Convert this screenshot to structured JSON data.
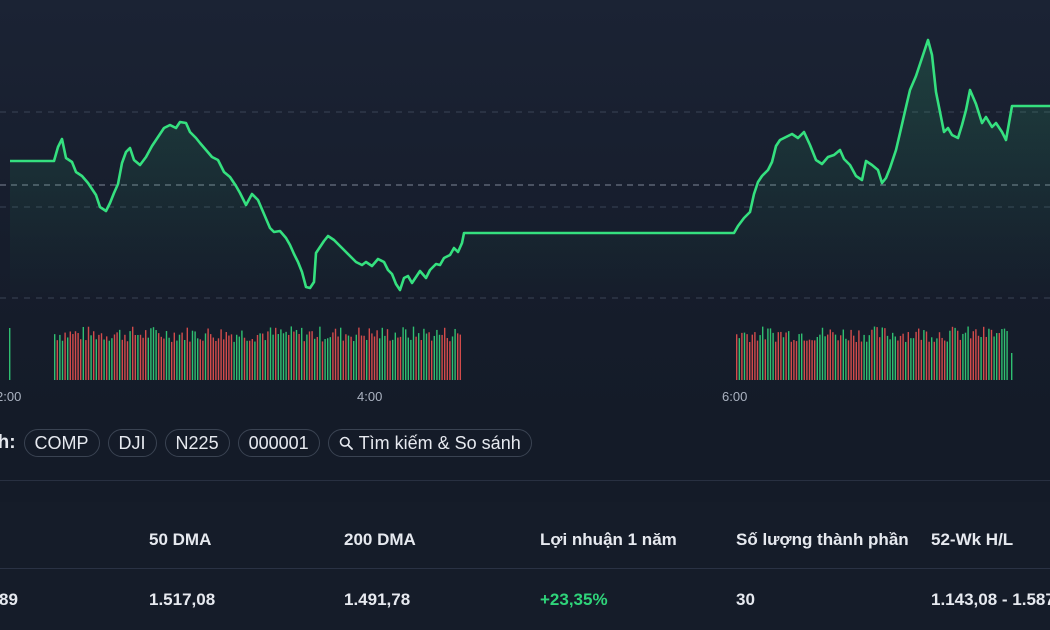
{
  "chart": {
    "line_color": "#35e07f",
    "up_volume_color": "#2fbf71",
    "down_volume_color": "#d24b4b",
    "time_labels": [
      "2:00",
      "4:00",
      "6:00"
    ]
  },
  "compare": {
    "label": "nh:",
    "chips": [
      "COMP",
      "DJI",
      "N225",
      "000001"
    ],
    "search_label": "Tìm kiếm & So sánh"
  },
  "stats": {
    "headers": [
      "50 DMA",
      "200 DMA",
      "Lợi nhuận 1 năm",
      "Số lượng thành phần",
      "52-Wk H/L"
    ],
    "first_value_partial": "89",
    "values": [
      "1.517,08",
      "1.491,78",
      "+23,35%",
      "30",
      "1.143,08 - 1.587"
    ]
  }
}
